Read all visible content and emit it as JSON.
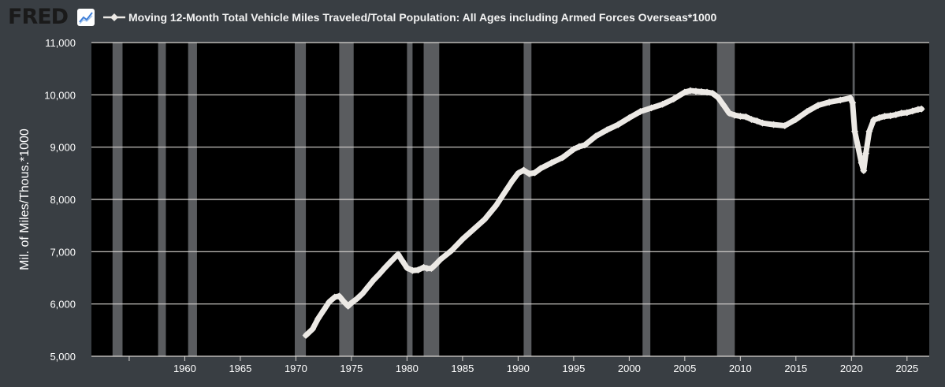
{
  "header": {
    "logo_text": "FRED",
    "logo_icon": "line-chart-icon",
    "title": "Moving 12-Month Total Vehicle Miles Traveled/Total Population: All Ages including Armed Forces Overseas*1000"
  },
  "colors": {
    "background": "#393e43",
    "plot_background": "#000000",
    "gridline": "#d9d6d2",
    "recession_shade": "#5a5c5f",
    "series": "#ece9e5",
    "text": "#ffffff"
  },
  "chart_data": {
    "type": "line",
    "title": "Moving 12-Month Total Vehicle Miles Traveled/Total Population: All Ages including Armed Forces Overseas*1000",
    "ylabel": "Mil. of Miles/Thous.*1000",
    "xlabel": "",
    "xlim": [
      1951.6,
      2027.0
    ],
    "ylim": [
      5000,
      11000
    ],
    "y_ticks": [
      5000,
      6000,
      7000,
      8000,
      9000,
      10000,
      11000
    ],
    "y_tick_labels": [
      "5,000",
      "6,000",
      "7,000",
      "8,000",
      "9,000",
      "10,000",
      "11,000"
    ],
    "x_ticks": [
      1960,
      1965,
      1970,
      1975,
      1980,
      1985,
      1990,
      1995,
      2000,
      2005,
      2010,
      2015,
      2020,
      2025
    ],
    "x_tick_labels": [
      "1960",
      "1965",
      "1970",
      "1975",
      "1980",
      "1985",
      "1990",
      "1995",
      "2000",
      "2005",
      "2010",
      "2015",
      "2020",
      "2025"
    ],
    "x_minor_ticks": [
      1955
    ],
    "grid": true,
    "legend": "top-left",
    "recessions": [
      [
        1953.5,
        1954.4
      ],
      [
        1957.6,
        1958.3
      ],
      [
        1960.3,
        1961.1
      ],
      [
        1969.9,
        1970.9
      ],
      [
        1973.9,
        1975.2
      ],
      [
        1980.0,
        1980.5
      ],
      [
        1981.5,
        1982.9
      ],
      [
        1990.5,
        1991.2
      ],
      [
        2001.2,
        2001.9
      ],
      [
        2007.9,
        2009.5
      ],
      [
        2020.1,
        2020.3
      ]
    ],
    "series": [
      {
        "name": "Moving 12-Month Total Vehicle Miles Traveled/Total Population: All Ages including Armed Forces Overseas*1000",
        "x": [
          1970.9,
          1971.5,
          1972.0,
          1972.5,
          1973.0,
          1973.5,
          1973.9,
          1974.3,
          1974.7,
          1975.0,
          1975.5,
          1976.0,
          1976.5,
          1977.0,
          1977.5,
          1978.0,
          1978.5,
          1979.0,
          1979.2,
          1979.6,
          1980.0,
          1980.5,
          1981.0,
          1981.5,
          1981.8,
          1982.2,
          1982.6,
          1983.0,
          1984.0,
          1985.0,
          1986.0,
          1987.0,
          1988.0,
          1989.0,
          1989.5,
          1990.0,
          1990.5,
          1991.0,
          1991.5,
          1992.0,
          1993.0,
          1994.0,
          1995.0,
          1995.5,
          1996.0,
          1997.0,
          1998.0,
          1999.0,
          2000.0,
          2001.0,
          2002.0,
          2003.0,
          2004.0,
          2005.0,
          2005.5,
          2006.0,
          2006.5,
          2007.0,
          2007.5,
          2008.0,
          2008.5,
          2009.0,
          2009.5,
          2010.0,
          2010.5,
          2011.0,
          2011.5,
          2012.0,
          2013.0,
          2014.0,
          2015.0,
          2016.0,
          2017.0,
          2018.0,
          2019.0,
          2019.9,
          2020.1,
          2020.3,
          2020.6,
          2020.9,
          2021.1,
          2021.3,
          2021.6,
          2022.0,
          2022.5,
          2023.0,
          2023.5,
          2024.0,
          2024.5,
          2025.0,
          2025.5,
          2026.0,
          2026.3
        ],
        "y": [
          5400,
          5520,
          5720,
          5880,
          6040,
          6130,
          6150,
          6050,
          5960,
          6020,
          6100,
          6200,
          6330,
          6460,
          6570,
          6690,
          6800,
          6910,
          6950,
          6820,
          6690,
          6640,
          6650,
          6700,
          6680,
          6680,
          6760,
          6850,
          7020,
          7240,
          7430,
          7620,
          7880,
          8200,
          8360,
          8500,
          8560,
          8490,
          8510,
          8590,
          8700,
          8800,
          8960,
          9010,
          9040,
          9210,
          9330,
          9430,
          9560,
          9680,
          9750,
          9820,
          9920,
          10050,
          10080,
          10070,
          10060,
          10050,
          10030,
          9950,
          9800,
          9650,
          9610,
          9590,
          9580,
          9530,
          9500,
          9460,
          9430,
          9410,
          9530,
          9680,
          9800,
          9860,
          9900,
          9940,
          9850,
          9300,
          9000,
          8700,
          8550,
          8880,
          9300,
          9520,
          9560,
          9590,
          9600,
          9620,
          9650,
          9660,
          9690,
          9720,
          9730
        ]
      }
    ]
  }
}
